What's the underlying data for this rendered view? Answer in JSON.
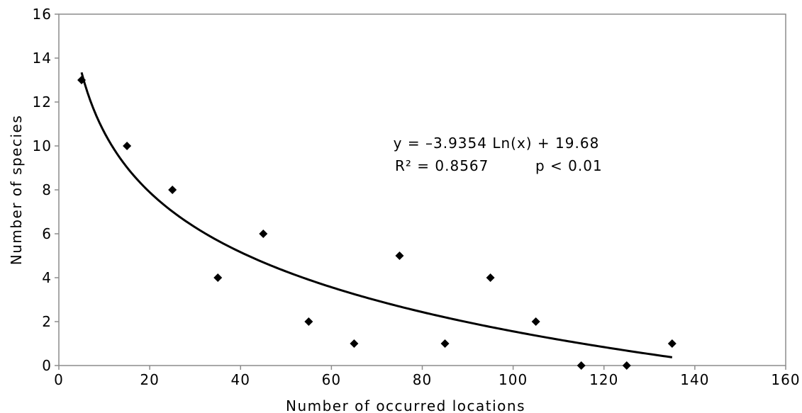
{
  "chart_data": {
    "type": "scatter",
    "title": "",
    "xlabel": "Number of occurred locations",
    "ylabel": "Number of species",
    "xlim": [
      0,
      160
    ],
    "ylim": [
      0,
      16
    ],
    "xticks": [
      0,
      20,
      40,
      60,
      80,
      100,
      120,
      140,
      160
    ],
    "yticks": [
      0,
      2,
      4,
      6,
      8,
      10,
      12,
      14,
      16
    ],
    "grid": false,
    "points": [
      {
        "x": 5,
        "y": 13
      },
      {
        "x": 15,
        "y": 10
      },
      {
        "x": 25,
        "y": 8
      },
      {
        "x": 35,
        "y": 4
      },
      {
        "x": 45,
        "y": 6
      },
      {
        "x": 55,
        "y": 2
      },
      {
        "x": 65,
        "y": 1
      },
      {
        "x": 75,
        "y": 5
      },
      {
        "x": 85,
        "y": 1
      },
      {
        "x": 95,
        "y": 4
      },
      {
        "x": 105,
        "y": 2
      },
      {
        "x": 115,
        "y": 0
      },
      {
        "x": 125,
        "y": 0
      },
      {
        "x": 135,
        "y": 1
      }
    ],
    "trendline": {
      "type": "logarithmic",
      "a": -3.9354,
      "b": 19.68,
      "x_range": [
        5,
        135
      ],
      "equation_label": "y = –3.9354 Ln(x) + 19.68",
      "r2_label": "R² = 0.8567",
      "p_label": "p < 0.01"
    },
    "marker_color": "#000000",
    "line_color": "#000000",
    "frame_color": "#8c8c8c"
  }
}
